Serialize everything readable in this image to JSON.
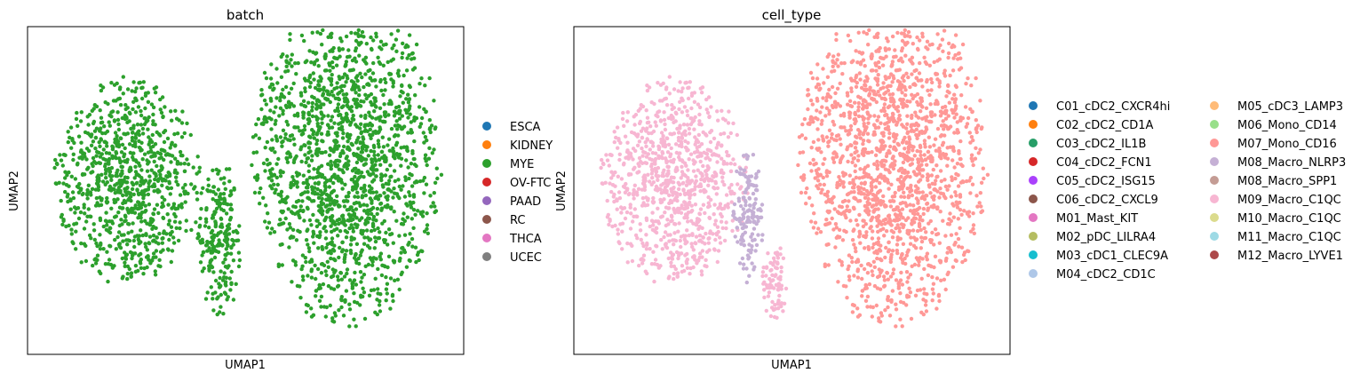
{
  "chart_data": [
    {
      "type": "scatter",
      "title": "batch",
      "xlabel": "UMAP1",
      "ylabel": "UMAP2",
      "xticks": [],
      "yticks": [],
      "grid": false,
      "legend_position": "right",
      "legend": [
        {
          "label": "ESCA",
          "color": "#1f77b4"
        },
        {
          "label": "KIDNEY",
          "color": "#ff7f0e"
        },
        {
          "label": "MYE",
          "color": "#2ca02c"
        },
        {
          "label": "OV-FTC",
          "color": "#d62728"
        },
        {
          "label": "PAAD",
          "color": "#9467bd"
        },
        {
          "label": "RC",
          "color": "#8c564b"
        },
        {
          "label": "THCA",
          "color": "#e377c2"
        },
        {
          "label": "UCEC",
          "color": "#7f7f7f"
        }
      ],
      "series": [
        {
          "name": "MYE",
          "color": "#2ca02c",
          "clusters": [
            {
              "cx": 0.23,
              "cy": 0.47,
              "rx": 0.17,
              "ry": 0.32,
              "n": 900
            },
            {
              "cx": 0.44,
              "cy": 0.65,
              "rx": 0.05,
              "ry": 0.25,
              "n": 220
            },
            {
              "cx": 0.73,
              "cy": 0.4,
              "rx": 0.22,
              "ry": 0.52,
              "n": 1700
            }
          ]
        }
      ]
    },
    {
      "type": "scatter",
      "title": "cell_type",
      "xlabel": "UMAP1",
      "ylabel": "UMAP2",
      "xticks": [],
      "yticks": [],
      "grid": false,
      "legend_position": "right",
      "legend_columns": 2,
      "legend": [
        {
          "label": "C01_cDC2_CXCR4hi",
          "color": "#1f77b4"
        },
        {
          "label": "C02_cDC2_CD1A",
          "color": "#ff7f0e"
        },
        {
          "label": "C03_cDC2_IL1B",
          "color": "#279e68"
        },
        {
          "label": "C04_cDC2_FCN1",
          "color": "#d62728"
        },
        {
          "label": "C05_cDC2_ISG15",
          "color": "#aa40fc"
        },
        {
          "label": "C06_cDC2_CXCL9",
          "color": "#8c564b"
        },
        {
          "label": "M01_Mast_KIT",
          "color": "#e377c2"
        },
        {
          "label": "M02_pDC_LILRA4",
          "color": "#b5bd61"
        },
        {
          "label": "M03_cDC1_CLEC9A",
          "color": "#17becf"
        },
        {
          "label": "M04_cDC2_CD1C",
          "color": "#aec7e8"
        },
        {
          "label": "M05_cDC3_LAMP3",
          "color": "#ffbb78"
        },
        {
          "label": "M06_Mono_CD14",
          "color": "#98df8a"
        },
        {
          "label": "M07_Mono_CD16",
          "color": "#ff9896"
        },
        {
          "label": "M08_Macro_NLRP3",
          "color": "#c5b0d5"
        },
        {
          "label": "M08_Macro_SPP1",
          "color": "#c49c94"
        },
        {
          "label": "M09_Macro_C1QC",
          "color": "#f7b6d2"
        },
        {
          "label": "M10_Macro_C1QC",
          "color": "#dbdb8d"
        },
        {
          "label": "M11_Macro_C1QC",
          "color": "#9edae5"
        },
        {
          "label": "M12_Macro_LYVE1",
          "color": "#ad494a"
        }
      ],
      "series": [
        {
          "name": "M09_Macro_C1QC",
          "color": "#f7b6d2",
          "clusters": [
            {
              "cx": 0.23,
              "cy": 0.47,
              "rx": 0.17,
              "ry": 0.32,
              "n": 900
            },
            {
              "cx": 0.46,
              "cy": 0.78,
              "rx": 0.03,
              "ry": 0.12,
              "n": 80
            }
          ]
        },
        {
          "name": "M08_Macro_NLRP3",
          "color": "#c5b0d5",
          "clusters": [
            {
              "cx": 0.4,
              "cy": 0.58,
              "rx": 0.035,
              "ry": 0.22,
              "n": 140
            }
          ]
        },
        {
          "name": "M07_Mono_CD16",
          "color": "#ff9896",
          "clusters": [
            {
              "cx": 0.73,
              "cy": 0.4,
              "rx": 0.22,
              "ry": 0.52,
              "n": 1700
            }
          ]
        }
      ]
    }
  ]
}
